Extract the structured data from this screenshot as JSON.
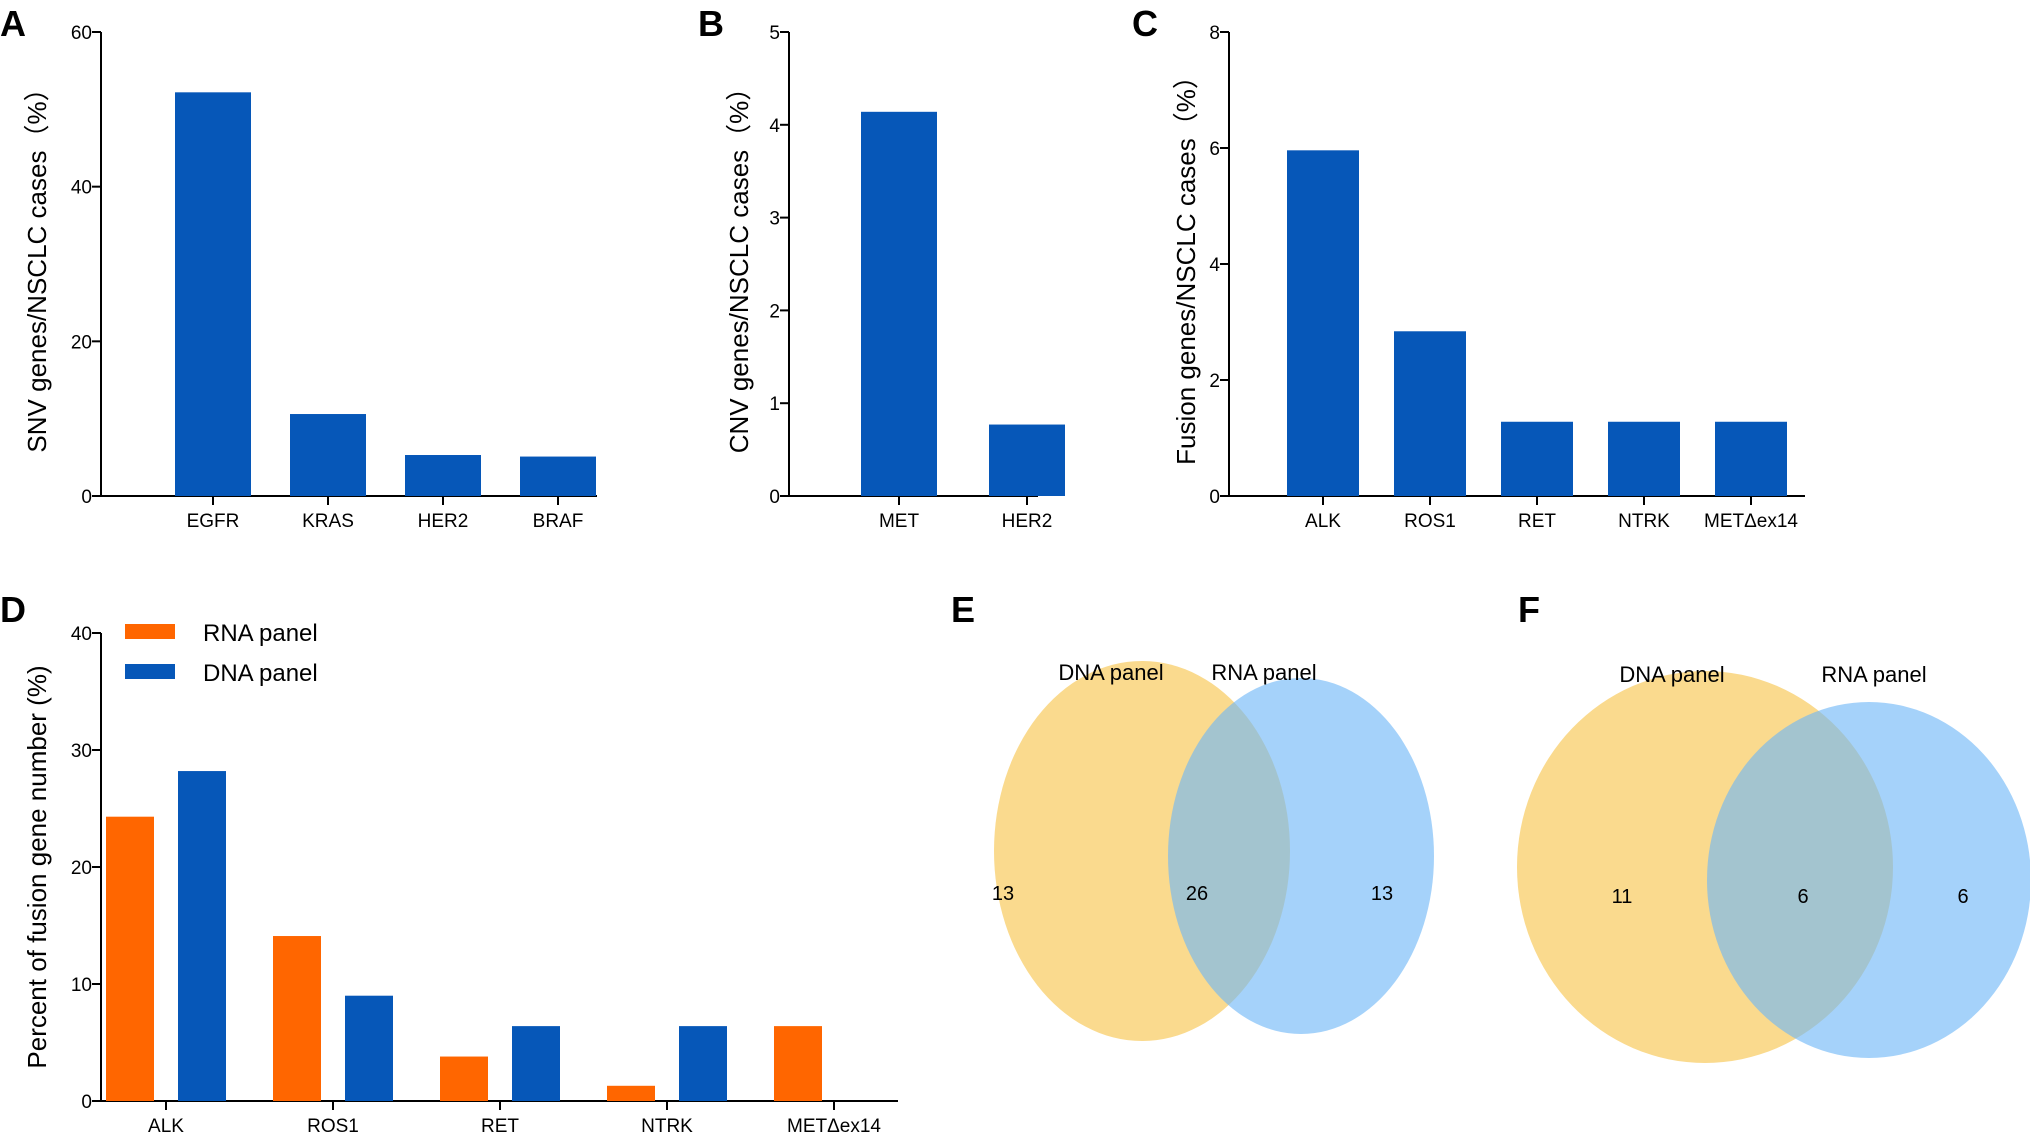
{
  "colors": {
    "blue": "#0657b8",
    "orange": "#ff6600",
    "venn_yellow": "#f9cf6e",
    "venn_blue": "#6eb6f7"
  },
  "chart_data": [
    {
      "panel": "A",
      "type": "bar",
      "ylabel": "SNV genes/NSCLC cases（%）",
      "categories": [
        "EGFR",
        "KRAS",
        "HER2",
        "BRAF"
      ],
      "values": [
        52.2,
        10.6,
        5.3,
        5.1
      ],
      "ylim": [
        0,
        60
      ],
      "yticks": [
        "0",
        "20",
        "40",
        "60"
      ],
      "ytick_values": [
        0,
        20,
        40,
        60
      ]
    },
    {
      "panel": "B",
      "type": "bar",
      "ylabel": "CNV genes/NSCLC cases（%）",
      "categories": [
        "MET",
        "HER2"
      ],
      "values": [
        4.14,
        0.77
      ],
      "ylim": [
        0,
        5
      ],
      "yticks": [
        "0",
        "1",
        "2",
        "3",
        "4",
        "5"
      ],
      "ytick_values": [
        0,
        1,
        2,
        3,
        4,
        5
      ]
    },
    {
      "panel": "C",
      "type": "bar",
      "ylabel": "Fusion genes/NSCLC cases（%）",
      "categories": [
        "ALK",
        "ROS1",
        "RET",
        "NTRK",
        "METΔex14"
      ],
      "values": [
        5.96,
        2.84,
        1.28,
        1.28,
        1.28
      ],
      "ylim": [
        0,
        8
      ],
      "yticks": [
        "0",
        "2",
        "4",
        "6",
        "8"
      ],
      "ytick_values": [
        0,
        2,
        4,
        6,
        8
      ]
    },
    {
      "panel": "D",
      "type": "bar",
      "ylabel": "Percent of fusion gene number (%)",
      "categories": [
        "ALK",
        "ROS1",
        "RET",
        "NTRK",
        "METΔex14"
      ],
      "series": [
        {
          "name": "RNA panel",
          "values": [
            24.3,
            14.1,
            3.8,
            1.3,
            6.4
          ]
        },
        {
          "name": "DNA panel",
          "values": [
            28.2,
            9.0,
            6.4,
            6.4,
            0
          ]
        }
      ],
      "ylim": [
        0,
        40
      ],
      "yticks": [
        "0",
        "10",
        "20",
        "30",
        "40"
      ],
      "ytick_values": [
        0,
        10,
        20,
        30,
        40
      ],
      "legend": "top-left"
    }
  ],
  "venns": [
    {
      "panel": "E",
      "left_label": "DNA panel",
      "right_label": "RNA panel",
      "left_only": "13",
      "overlap": "26",
      "right_only": "13"
    },
    {
      "panel": "F",
      "left_label": "DNA panel",
      "right_label": "RNA panel",
      "left_only": "11",
      "overlap": "6",
      "right_only": "6"
    }
  ]
}
